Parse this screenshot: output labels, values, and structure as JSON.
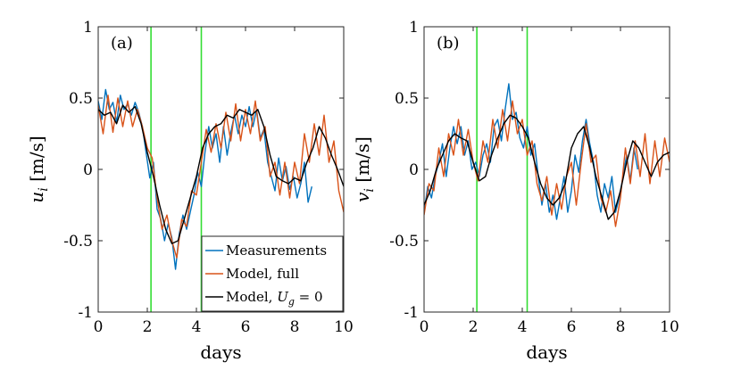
{
  "chart_data": [
    {
      "type": "line",
      "panel_label": "(a)",
      "xlabel": "days",
      "ylabel": "u_i [m/s]",
      "ylabel_symbol": "u",
      "ylabel_sub": "i",
      "ylabel_unit": "[m/s]",
      "xlim": [
        0,
        10
      ],
      "ylim": [
        -1,
        1
      ],
      "xticks": [
        0,
        2,
        4,
        6,
        8,
        10
      ],
      "yticks": [
        -1,
        -0.5,
        0,
        0.5,
        1
      ],
      "xtick_labels": [
        "0",
        "2",
        "4",
        "6",
        "8",
        "10"
      ],
      "ytick_labels": [
        "-1",
        "-0.5",
        "0",
        "0.5",
        "1"
      ],
      "vertical_lines": [
        2.15,
        4.2
      ],
      "vertical_line_color": "#33dd33",
      "legend": {
        "position": "bottom-right",
        "entries": [
          {
            "label": "Measurements",
            "color": "#0072bd"
          },
          {
            "label": "Model, full",
            "color": "#d95319"
          },
          {
            "label": "Model, U_g = 0",
            "label_prefix": "Model, ",
            "label_symbol": "U",
            "label_sub": "g",
            "label_suffix": " = 0",
            "color": "#000000"
          }
        ]
      },
      "series": [
        {
          "name": "Measurements",
          "color": "#0072bd",
          "x": [
            0,
            0.15,
            0.3,
            0.45,
            0.6,
            0.75,
            0.9,
            1.05,
            1.2,
            1.35,
            1.5,
            1.65,
            1.8,
            1.95,
            2.1,
            2.25,
            2.4,
            2.55,
            2.7,
            2.85,
            3.0,
            3.15,
            3.3,
            3.45,
            3.6,
            3.75,
            3.9,
            4.05,
            4.2,
            4.35,
            4.5,
            4.65,
            4.8,
            4.95,
            5.1,
            5.25,
            5.4,
            5.55,
            5.7,
            5.85,
            6.0,
            6.15,
            6.3,
            6.45,
            6.6,
            6.75,
            6.9,
            7.05,
            7.2,
            7.35,
            7.5,
            7.65,
            7.8,
            7.95,
            8.1,
            8.25,
            8.4,
            8.55,
            8.7
          ],
          "values": [
            0.48,
            0.35,
            0.56,
            0.42,
            0.47,
            0.33,
            0.52,
            0.42,
            0.46,
            0.38,
            0.47,
            0.4,
            0.3,
            0.12,
            -0.06,
            0.05,
            -0.28,
            -0.35,
            -0.5,
            -0.38,
            -0.48,
            -0.7,
            -0.45,
            -0.32,
            -0.42,
            -0.3,
            -0.18,
            -0.02,
            -0.12,
            0.12,
            0.3,
            0.15,
            0.25,
            0.05,
            0.3,
            0.1,
            0.26,
            0.38,
            0.25,
            0.38,
            0.3,
            0.44,
            0.3,
            0.42,
            0.22,
            0.28,
            0.05,
            -0.05,
            -0.15,
            0.08,
            -0.08,
            0.02,
            -0.14,
            -0.05,
            -0.2,
            -0.1,
            0.05,
            -0.23,
            -0.12
          ]
        },
        {
          "name": "Model, full",
          "color": "#d95319",
          "x": [
            0,
            0.2,
            0.4,
            0.6,
            0.8,
            1.0,
            1.2,
            1.4,
            1.6,
            1.8,
            2.0,
            2.2,
            2.4,
            2.6,
            2.8,
            3.0,
            3.2,
            3.4,
            3.6,
            3.8,
            4.0,
            4.2,
            4.4,
            4.6,
            4.8,
            5.0,
            5.2,
            5.4,
            5.6,
            5.8,
            6.0,
            6.2,
            6.4,
            6.6,
            6.8,
            7.0,
            7.2,
            7.4,
            7.6,
            7.8,
            8.0,
            8.2,
            8.4,
            8.6,
            8.8,
            9.0,
            9.2,
            9.4,
            9.6,
            9.8,
            10.0
          ],
          "values": [
            0.45,
            0.25,
            0.52,
            0.26,
            0.5,
            0.3,
            0.48,
            0.3,
            0.42,
            0.3,
            0.15,
            0.08,
            -0.2,
            -0.42,
            -0.32,
            -0.5,
            -0.62,
            -0.35,
            -0.4,
            -0.15,
            -0.18,
            0.05,
            0.28,
            0.12,
            0.32,
            0.15,
            0.4,
            0.2,
            0.46,
            0.2,
            0.42,
            0.25,
            0.48,
            0.2,
            0.3,
            -0.05,
            0.05,
            -0.18,
            0.05,
            -0.2,
            0.05,
            -0.1,
            0.25,
            0.05,
            0.32,
            0.1,
            0.38,
            0.05,
            0.2,
            -0.15,
            -0.3
          ]
        },
        {
          "name": "Model, U_g = 0",
          "color": "#000000",
          "x": [
            0,
            0.25,
            0.5,
            0.75,
            1.0,
            1.25,
            1.5,
            1.75,
            2.0,
            2.25,
            2.5,
            2.75,
            3.0,
            3.25,
            3.5,
            3.75,
            4.0,
            4.25,
            4.5,
            4.75,
            5.0,
            5.25,
            5.5,
            5.75,
            6.0,
            6.25,
            6.5,
            6.75,
            7.0,
            7.25,
            7.5,
            7.75,
            8.0,
            8.25,
            8.5,
            8.75,
            9.0,
            9.25,
            9.5,
            9.75,
            10.0
          ],
          "values": [
            0.42,
            0.38,
            0.4,
            0.32,
            0.45,
            0.4,
            0.44,
            0.32,
            0.12,
            -0.05,
            -0.25,
            -0.42,
            -0.52,
            -0.5,
            -0.35,
            -0.2,
            -0.05,
            0.15,
            0.25,
            0.3,
            0.32,
            0.38,
            0.36,
            0.42,
            0.4,
            0.38,
            0.42,
            0.3,
            0.1,
            -0.05,
            -0.08,
            -0.1,
            -0.06,
            -0.08,
            0.05,
            0.15,
            0.3,
            0.22,
            0.1,
            0.0,
            -0.12
          ]
        }
      ]
    },
    {
      "type": "line",
      "panel_label": "(b)",
      "xlabel": "days",
      "ylabel": "v_i [m/s]",
      "ylabel_symbol": "v",
      "ylabel_sub": "i",
      "ylabel_unit": "[m/s]",
      "xlim": [
        0,
        10
      ],
      "ylim": [
        -1,
        1
      ],
      "xticks": [
        0,
        2,
        4,
        6,
        8,
        10
      ],
      "yticks": [
        -1,
        -0.5,
        0,
        0.5,
        1
      ],
      "xtick_labels": [
        "0",
        "2",
        "4",
        "6",
        "8",
        "10"
      ],
      "ytick_labels": [
        "-1",
        "-0.5",
        "0",
        "0.5",
        "1"
      ],
      "vertical_lines": [
        2.15,
        4.2
      ],
      "vertical_line_color": "#33dd33",
      "series": [
        {
          "name": "Measurements",
          "color": "#0072bd",
          "x": [
            0,
            0.15,
            0.3,
            0.45,
            0.6,
            0.75,
            0.9,
            1.05,
            1.2,
            1.35,
            1.5,
            1.65,
            1.8,
            1.95,
            2.1,
            2.25,
            2.4,
            2.55,
            2.7,
            2.85,
            3.0,
            3.15,
            3.3,
            3.45,
            3.6,
            3.75,
            3.9,
            4.05,
            4.2,
            4.35,
            4.5,
            4.65,
            4.8,
            4.95,
            5.1,
            5.25,
            5.4,
            5.55,
            5.7,
            5.85,
            6.0,
            6.15,
            6.3,
            6.45,
            6.6,
            6.75,
            6.9,
            7.05,
            7.2,
            7.35,
            7.5,
            7.65,
            7.8,
            7.95,
            8.1,
            8.25,
            8.4,
            8.55,
            8.7
          ],
          "values": [
            -0.3,
            -0.12,
            -0.2,
            -0.05,
            0.05,
            0.18,
            -0.05,
            0.15,
            0.3,
            0.18,
            0.3,
            0.1,
            0.2,
            0.0,
            0.05,
            -0.05,
            0.1,
            0.18,
            0.05,
            0.3,
            0.35,
            0.2,
            0.42,
            0.6,
            0.35,
            0.4,
            0.22,
            0.15,
            0.3,
            0.1,
            0.18,
            -0.05,
            -0.25,
            -0.1,
            -0.3,
            -0.18,
            -0.35,
            -0.2,
            -0.05,
            -0.3,
            -0.15,
            0.1,
            -0.02,
            0.2,
            0.35,
            0.18,
            0.05,
            -0.18,
            -0.3,
            -0.1,
            -0.2,
            -0.05,
            -0.3,
            -0.2,
            -0.05,
            0.1,
            -0.08,
            0.15,
            0.0
          ]
        },
        {
          "name": "Model, full",
          "color": "#d95319",
          "x": [
            0,
            0.2,
            0.4,
            0.6,
            0.8,
            1.0,
            1.2,
            1.4,
            1.6,
            1.8,
            2.0,
            2.2,
            2.4,
            2.6,
            2.8,
            3.0,
            3.2,
            3.4,
            3.6,
            3.8,
            4.0,
            4.2,
            4.4,
            4.6,
            4.8,
            5.0,
            5.2,
            5.4,
            5.6,
            5.8,
            6.0,
            6.2,
            6.4,
            6.6,
            6.8,
            7.0,
            7.2,
            7.4,
            7.6,
            7.8,
            8.0,
            8.2,
            8.4,
            8.6,
            8.8,
            9.0,
            9.2,
            9.4,
            9.6,
            9.8,
            10.0
          ],
          "values": [
            -0.32,
            -0.1,
            -0.15,
            0.15,
            -0.05,
            0.25,
            0.1,
            0.35,
            0.1,
            0.28,
            0.05,
            -0.08,
            0.2,
            0.05,
            0.35,
            0.15,
            0.42,
            0.2,
            0.48,
            0.25,
            0.35,
            0.1,
            0.2,
            -0.1,
            -0.22,
            -0.05,
            -0.32,
            -0.1,
            -0.28,
            -0.05,
            0.05,
            -0.25,
            0.05,
            0.32,
            0.05,
            0.1,
            -0.2,
            -0.3,
            -0.15,
            -0.4,
            -0.2,
            0.15,
            -0.1,
            0.2,
            -0.05,
            0.25,
            -0.1,
            0.2,
            -0.05,
            0.22,
            0.05
          ]
        },
        {
          "name": "Model, U_g = 0",
          "color": "#000000",
          "x": [
            0,
            0.25,
            0.5,
            0.75,
            1.0,
            1.25,
            1.5,
            1.75,
            2.0,
            2.25,
            2.5,
            2.75,
            3.0,
            3.25,
            3.5,
            3.75,
            4.0,
            4.25,
            4.5,
            4.75,
            5.0,
            5.25,
            5.5,
            5.75,
            6.0,
            6.25,
            6.5,
            6.75,
            7.0,
            7.25,
            7.5,
            7.75,
            8.0,
            8.25,
            8.5,
            8.75,
            9.0,
            9.25,
            9.5,
            9.75,
            10.0
          ],
          "values": [
            -0.25,
            -0.15,
            0.0,
            0.1,
            0.2,
            0.25,
            0.22,
            0.2,
            0.05,
            -0.08,
            -0.05,
            0.1,
            0.22,
            0.32,
            0.38,
            0.36,
            0.3,
            0.22,
            0.05,
            -0.1,
            -0.2,
            -0.25,
            -0.2,
            -0.1,
            0.15,
            0.25,
            0.3,
            0.15,
            -0.05,
            -0.2,
            -0.35,
            -0.3,
            -0.15,
            0.05,
            0.2,
            0.15,
            0.05,
            -0.05,
            0.05,
            0.1,
            0.12
          ]
        }
      ]
    }
  ]
}
